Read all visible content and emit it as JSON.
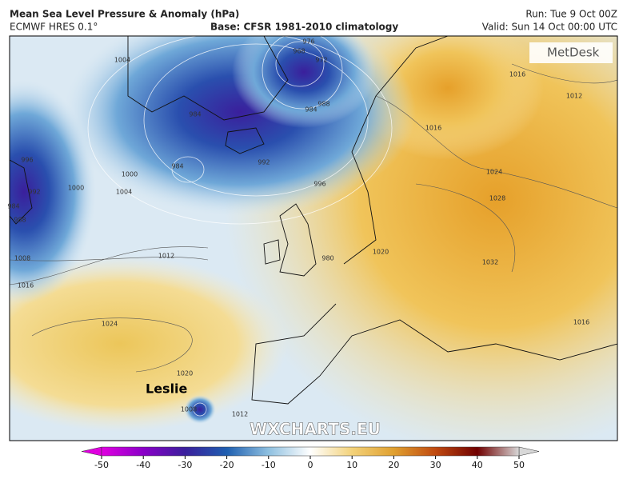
{
  "header": {
    "title": "Mean Sea Level Pressure & Anomaly (hPa)",
    "model": "ECMWF HRES 0.1°",
    "base": "Base: CFSR 1981-2010 climatology",
    "run": "Run: Tue 9 Oct 00Z",
    "valid": "Valid: Sun 14 Oct 00:00 UTC"
  },
  "map": {
    "logo": "MetDesk",
    "annotation": "Leslie",
    "watermark": "WXCHARTS.EU",
    "contour_labels": [
      1004,
      968,
      976,
      972,
      984,
      984,
      988,
      984,
      992,
      996,
      996,
      992,
      984,
      988,
      1000,
      1000,
      1004,
      1008,
      1016,
      1012,
      1024,
      1020,
      1008,
      1012,
      980,
      1020,
      1016,
      1024,
      1028,
      1032,
      1016,
      1012,
      1016
    ]
  },
  "colorbar": {
    "lim": [
      -50,
      50
    ],
    "ticks": [
      -50,
      -40,
      -30,
      -20,
      -10,
      0,
      10,
      20,
      30,
      40,
      50
    ],
    "colors": [
      "#e000e0",
      "#8a00c8",
      "#3a1f9c",
      "#1f5fb0",
      "#8fc0e0",
      "#ffffff",
      "#f3d27a",
      "#e0a030",
      "#c04a10",
      "#700000",
      "#d8d8d8"
    ]
  }
}
